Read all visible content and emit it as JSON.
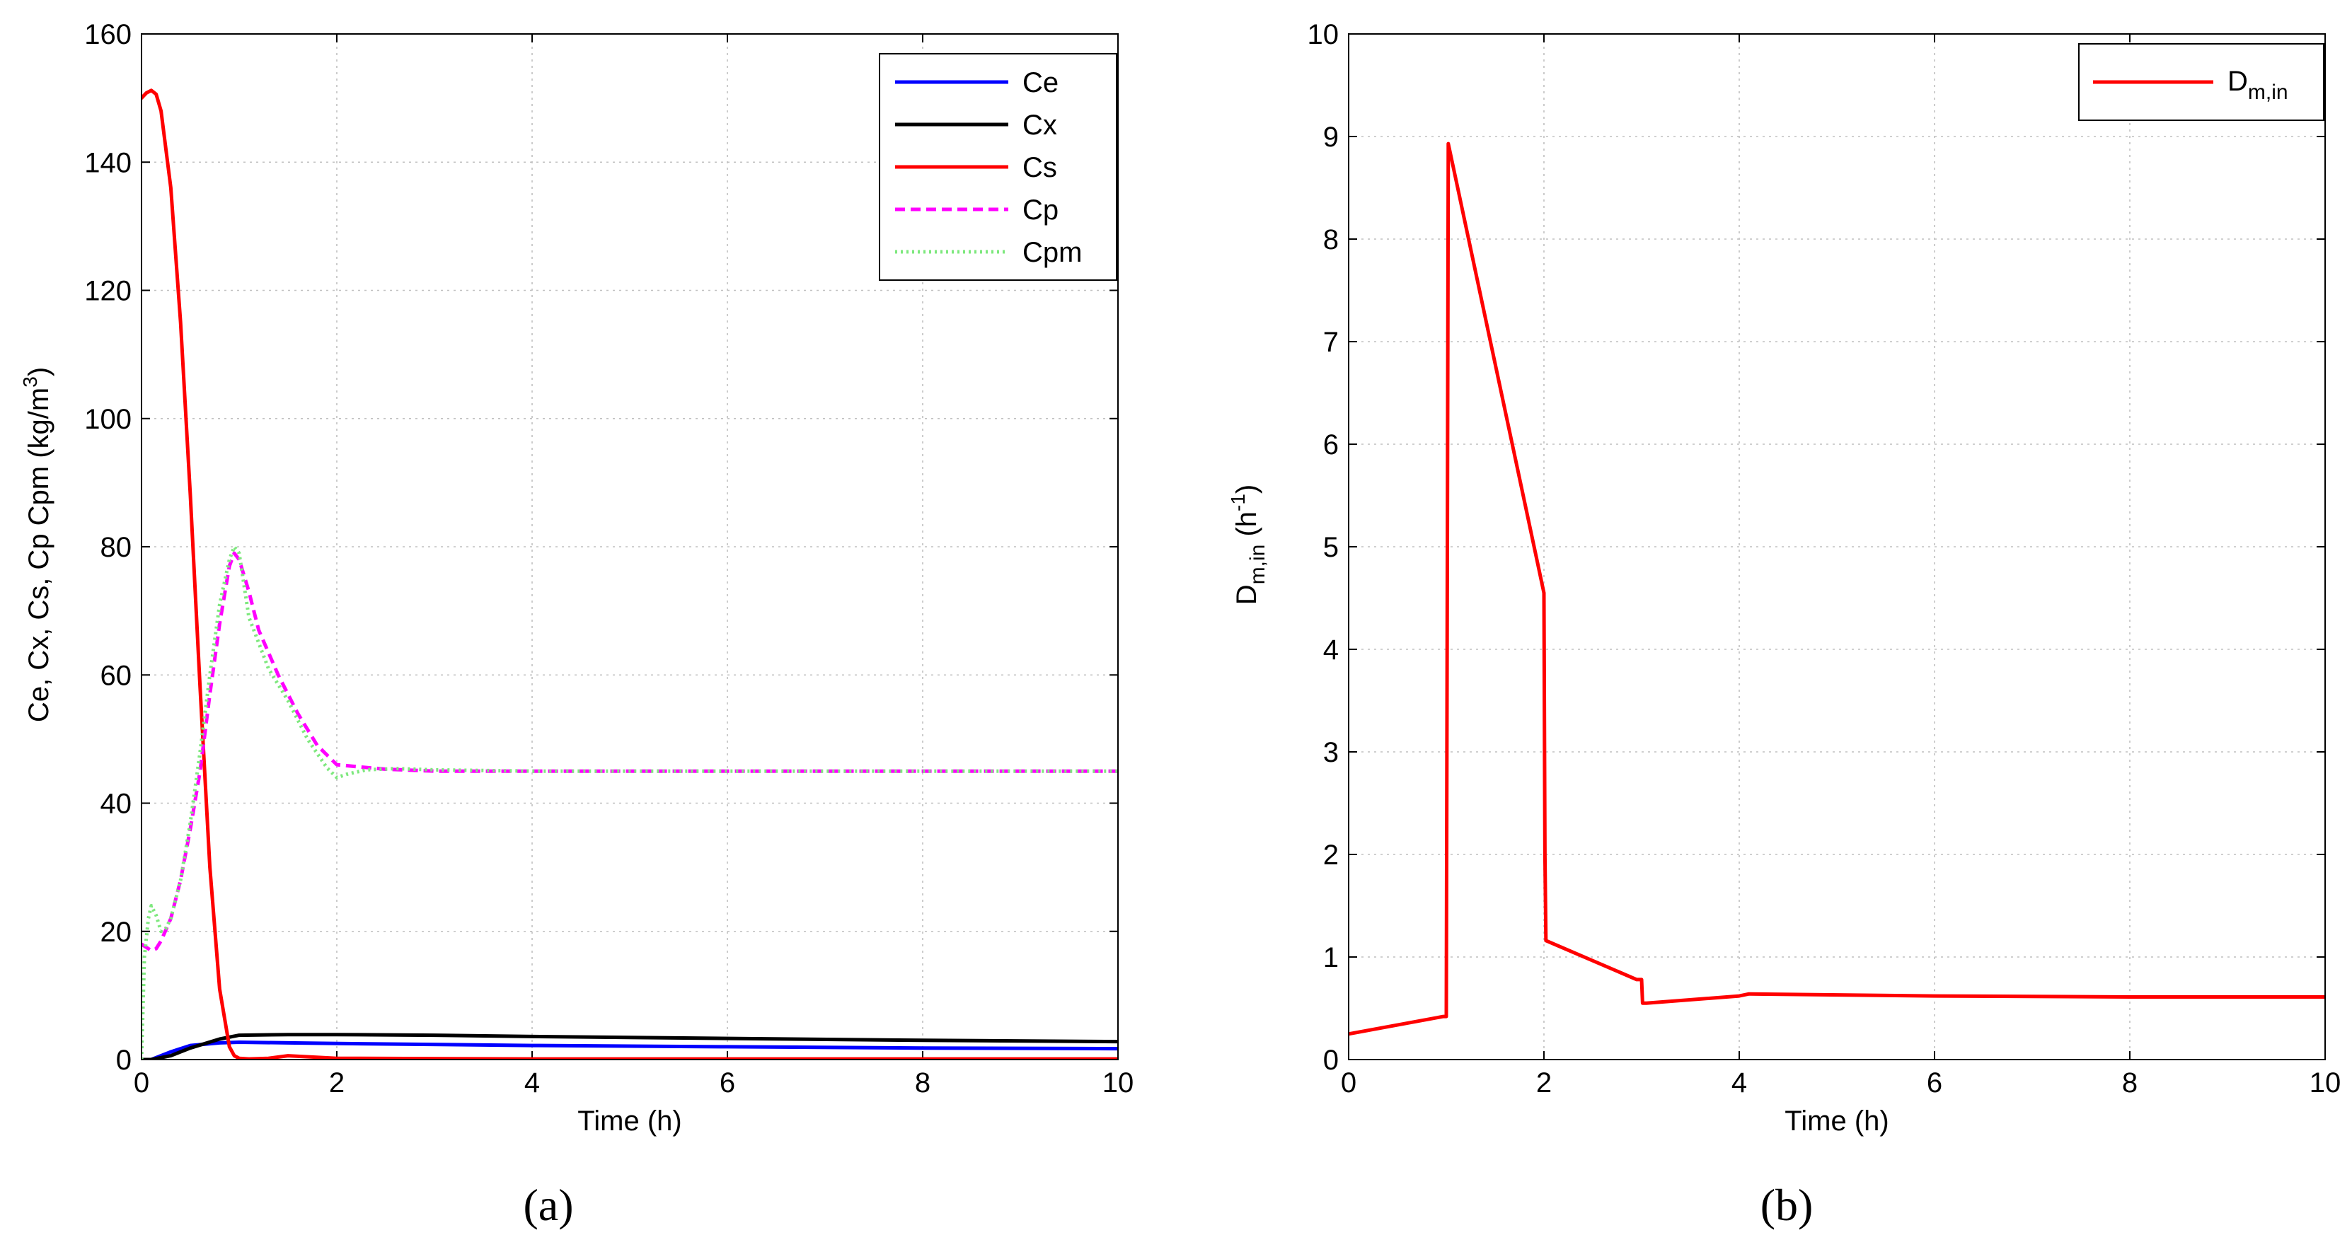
{
  "chart_data": [
    {
      "panel": "(a)",
      "type": "line",
      "xlabel": "Time (h)",
      "ylabel": "Ce, Cx, Cs, Cp Cpm (kg/m3)",
      "ylabel_parts": {
        "main": "Ce, Cx, Cs, Cp Cpm (kg/m",
        "sup": "3",
        "end": ")"
      },
      "xlim": [
        0,
        10
      ],
      "ylim": [
        0,
        160
      ],
      "xticks": [
        "0",
        "2",
        "4",
        "6",
        "8",
        "10"
      ],
      "yticks": [
        "0",
        "20",
        "40",
        "60",
        "80",
        "100",
        "120",
        "140",
        "160"
      ],
      "grid": true,
      "legend_position": "top-right",
      "series": [
        {
          "name": "Ce",
          "color": "#0000ff",
          "style": "solid",
          "x": [
            0,
            0.1,
            0.3,
            0.5,
            0.8,
            1.0,
            1.5,
            2,
            4,
            6,
            8,
            10
          ],
          "y": [
            0,
            0,
            1.2,
            2.2,
            2.6,
            2.7,
            2.6,
            2.5,
            2.2,
            2.0,
            1.8,
            1.7
          ]
        },
        {
          "name": "Cx",
          "color": "#000000",
          "style": "solid",
          "x": [
            0,
            0.1,
            0.3,
            0.5,
            0.8,
            1.0,
            1.5,
            2,
            3,
            4,
            6,
            8,
            10
          ],
          "y": [
            0,
            0,
            0.6,
            1.8,
            3.2,
            3.8,
            3.9,
            3.9,
            3.8,
            3.6,
            3.3,
            3.0,
            2.8
          ]
        },
        {
          "name": "Cs",
          "color": "#ff0000",
          "style": "solid",
          "x": [
            0,
            0.05,
            0.1,
            0.15,
            0.2,
            0.3,
            0.4,
            0.5,
            0.6,
            0.7,
            0.8,
            0.9,
            0.95,
            1.0,
            1.1,
            1.3,
            1.5,
            2,
            4,
            6,
            8,
            10
          ],
          "y": [
            150,
            150.8,
            151.2,
            150.6,
            148,
            136,
            115,
            88,
            58,
            30,
            11,
            2,
            0.6,
            0.2,
            0.1,
            0.2,
            0.6,
            0.2,
            0.1,
            0.1,
            0.1,
            0.1
          ]
        },
        {
          "name": "Cp",
          "color": "#ff00ff",
          "style": "dashed",
          "x": [
            0,
            0.05,
            0.1,
            0.15,
            0.2,
            0.3,
            0.4,
            0.5,
            0.6,
            0.7,
            0.8,
            0.9,
            0.95,
            1.0,
            1.1,
            1.2,
            1.4,
            1.6,
            1.8,
            2.0,
            2.2,
            2.5,
            3.0,
            4,
            6,
            8,
            10
          ],
          "y": [
            18,
            17.5,
            17,
            17.3,
            18.5,
            22,
            28,
            36,
            45,
            57,
            68,
            77,
            79,
            78,
            73,
            67,
            60,
            54,
            49,
            46,
            45.7,
            45.3,
            45,
            45,
            45,
            45,
            45
          ]
        },
        {
          "name": "Cpm",
          "color": "#7ee87e",
          "style": "dotted",
          "x": [
            0,
            0.03,
            0.07,
            0.1,
            0.15,
            0.2,
            0.25,
            0.3,
            0.4,
            0.5,
            0.6,
            0.7,
            0.8,
            0.9,
            0.95,
            1.0,
            1.05,
            1.1,
            1.2,
            1.3,
            1.5,
            1.7,
            1.9,
            2.0,
            2.1,
            2.3,
            2.6,
            3.0,
            4,
            6,
            8,
            10
          ],
          "y": [
            0,
            16,
            22,
            24,
            22.5,
            20,
            20.5,
            22,
            28,
            37,
            48,
            60,
            71,
            78,
            80,
            79,
            74,
            69,
            65,
            61,
            56,
            50,
            45.5,
            44,
            44.5,
            45.2,
            45.4,
            45.2,
            45,
            45,
            45,
            45
          ]
        }
      ]
    },
    {
      "panel": "(b)",
      "type": "line",
      "xlabel": "Time (h)",
      "ylabel": "Dm,in (h-1)",
      "ylabel_parts": {
        "D": "D",
        "sub": "m,in",
        "mid": " (h",
        "sup": "-1",
        "end": ")"
      },
      "xlim": [
        0,
        10
      ],
      "ylim": [
        0,
        10
      ],
      "xticks": [
        "0",
        "2",
        "4",
        "6",
        "8",
        "10"
      ],
      "yticks": [
        "0",
        "1",
        "2",
        "3",
        "4",
        "5",
        "6",
        "7",
        "8",
        "9",
        "10"
      ],
      "grid": true,
      "legend_position": "top-right",
      "series": [
        {
          "name": "Dm,in",
          "name_parts": {
            "D": "D",
            "sub": "m,in"
          },
          "color": "#ff0000",
          "style": "solid",
          "x": [
            0,
            0.97,
            1.0,
            1.02,
            2.0,
            2.01,
            2.02,
            2.95,
            3.0,
            3.01,
            3.05,
            4.0,
            4.1,
            6,
            8,
            10
          ],
          "y": [
            0.25,
            0.42,
            0.42,
            8.93,
            4.55,
            2.0,
            1.16,
            0.78,
            0.78,
            0.55,
            0.55,
            0.62,
            0.64,
            0.62,
            0.61,
            0.61
          ]
        }
      ]
    }
  ],
  "panel_labels": [
    "(a)",
    "(b)"
  ]
}
